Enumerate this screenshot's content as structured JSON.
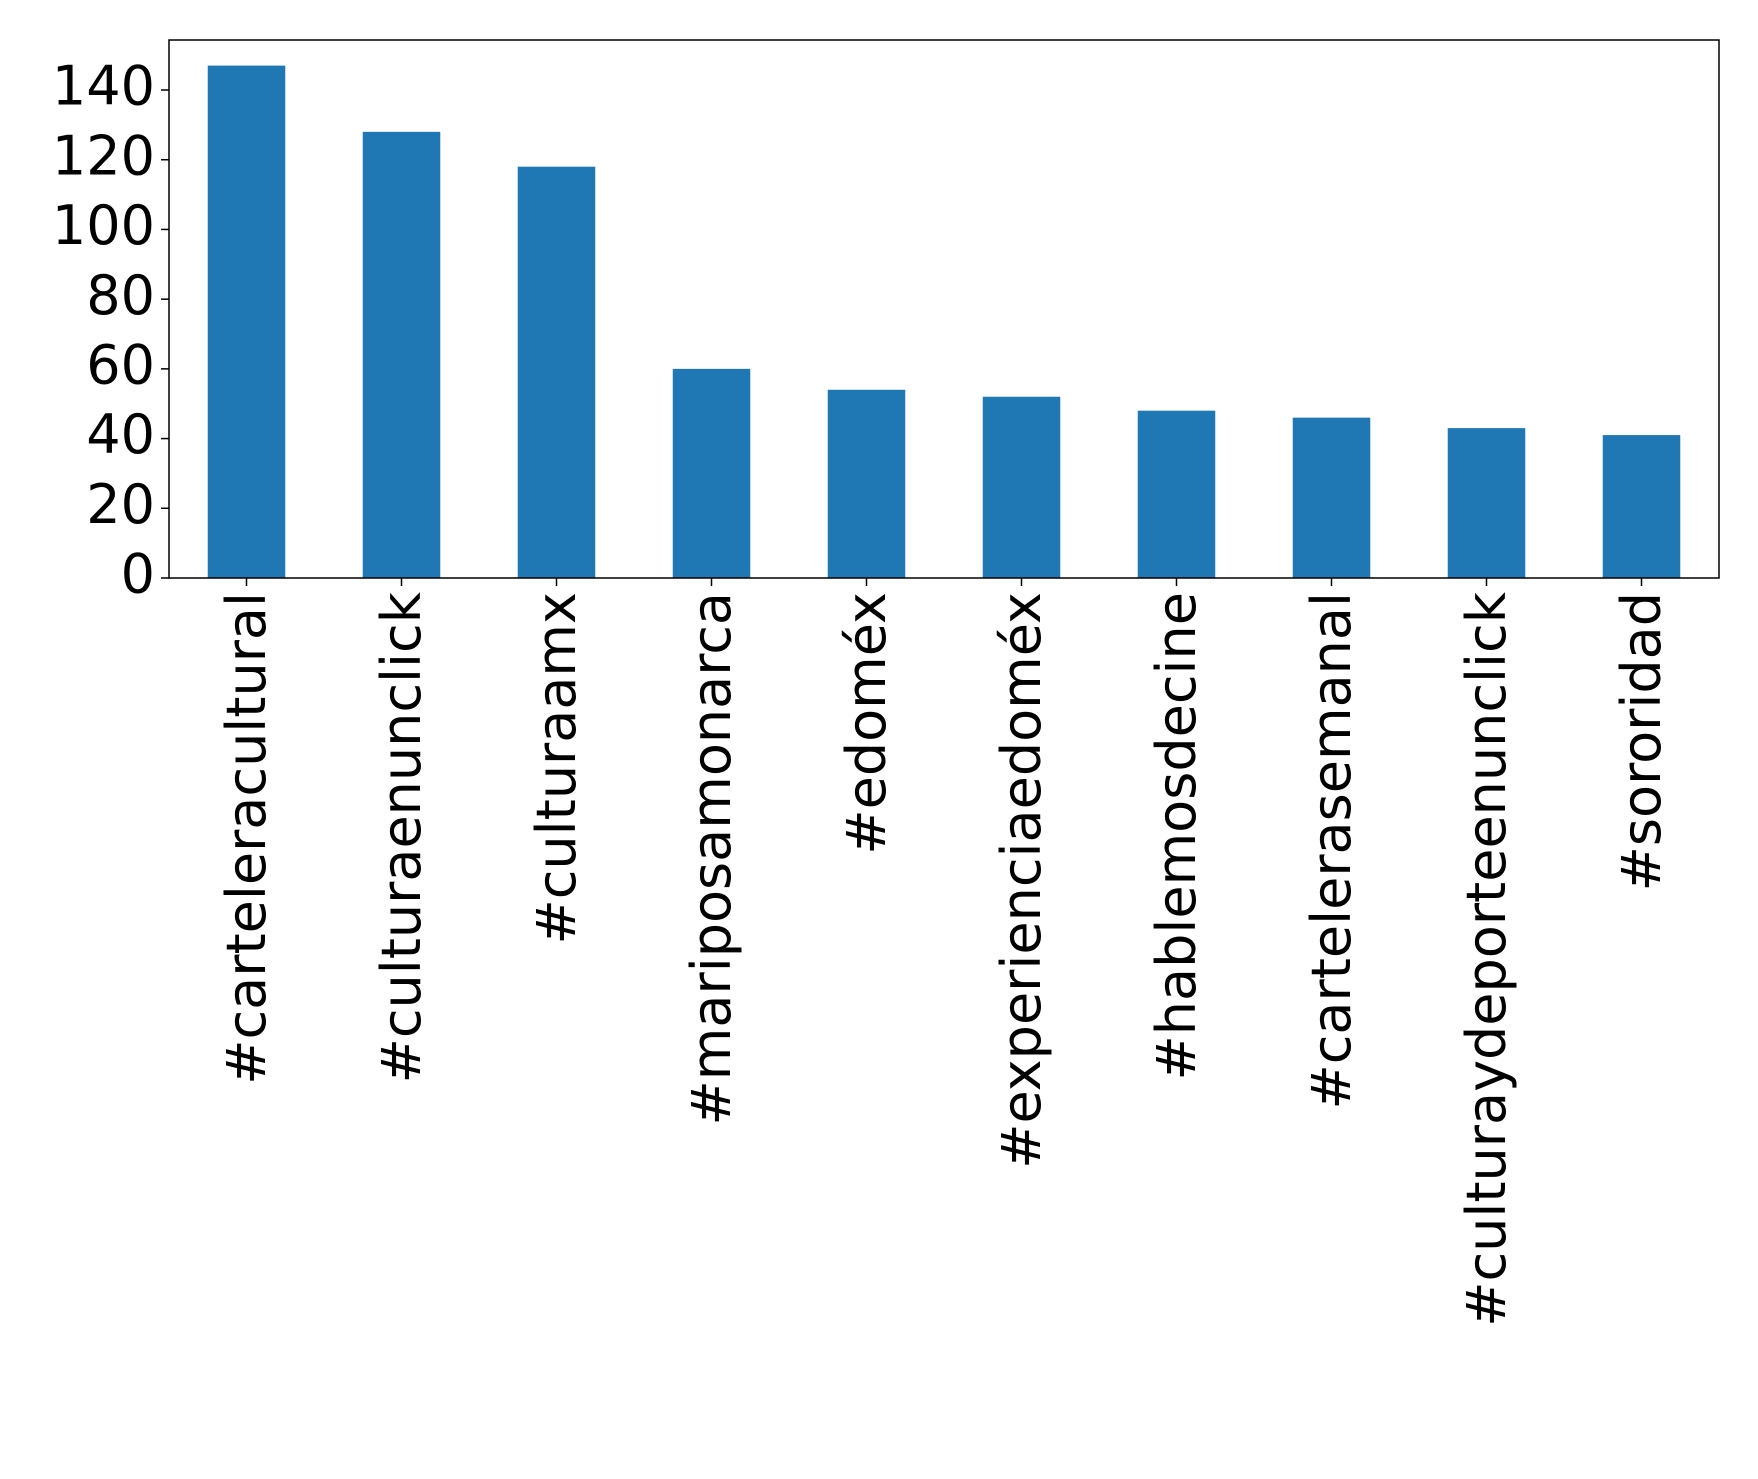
{
  "chart_data": {
    "type": "bar",
    "categories": [
      "#carteleracultural",
      "#culturaenunclick",
      "#culturaamx",
      "#mariposamonarca",
      "#edoméx",
      "#experienciaedoméx",
      "#hablemosdecine",
      "#cartelerasemanal",
      "#culturaydeporteenunclick",
      "#sororidad"
    ],
    "values": [
      147,
      128,
      118,
      60,
      54,
      52,
      48,
      46,
      43,
      41
    ],
    "color": "#1f77b4",
    "ylim": [
      0,
      154.35
    ],
    "yticks": [
      0,
      20,
      40,
      60,
      80,
      100,
      120,
      140
    ],
    "grid": false
  }
}
